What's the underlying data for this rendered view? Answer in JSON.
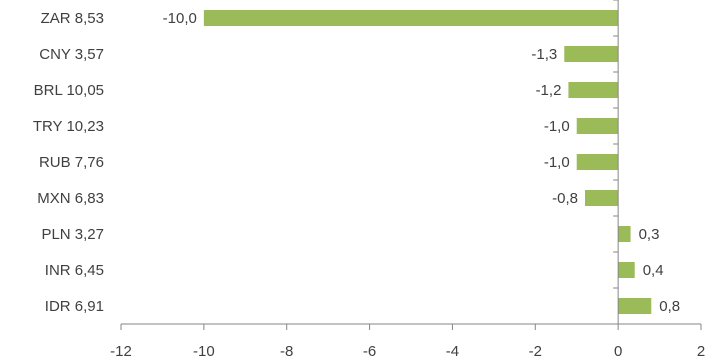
{
  "chart_data": {
    "type": "bar",
    "orientation": "horizontal",
    "categories": [
      "ZAR 8,53",
      "CNY 3,57",
      "BRL 10,05",
      "TRY 10,23",
      "RUB 7,76",
      "MXN 6,83",
      "PLN 3,27",
      "INR 6,45",
      "IDR 6,91"
    ],
    "values": [
      -10.0,
      -1.3,
      -1.2,
      -1.0,
      -1.0,
      -0.8,
      0.3,
      0.4,
      0.8
    ],
    "value_labels": [
      "-10,0",
      "-1,3",
      "-1,2",
      "-1,0",
      "-1,0",
      "-0,8",
      "0,3",
      "0,4",
      "0,8"
    ],
    "title": "",
    "xlabel": "",
    "ylabel": "",
    "xlim": [
      -12,
      2
    ],
    "xticks": [
      -12,
      -10,
      -8,
      -6,
      -4,
      -2,
      0,
      2
    ],
    "xtick_labels": [
      "-12",
      "-10",
      "-8",
      "-6",
      "-4",
      "-2",
      "0",
      "2"
    ],
    "grid": false,
    "legend": "none",
    "bar_color": "#9bbb59",
    "axis_color": "#868686",
    "text_color": "#404040"
  }
}
